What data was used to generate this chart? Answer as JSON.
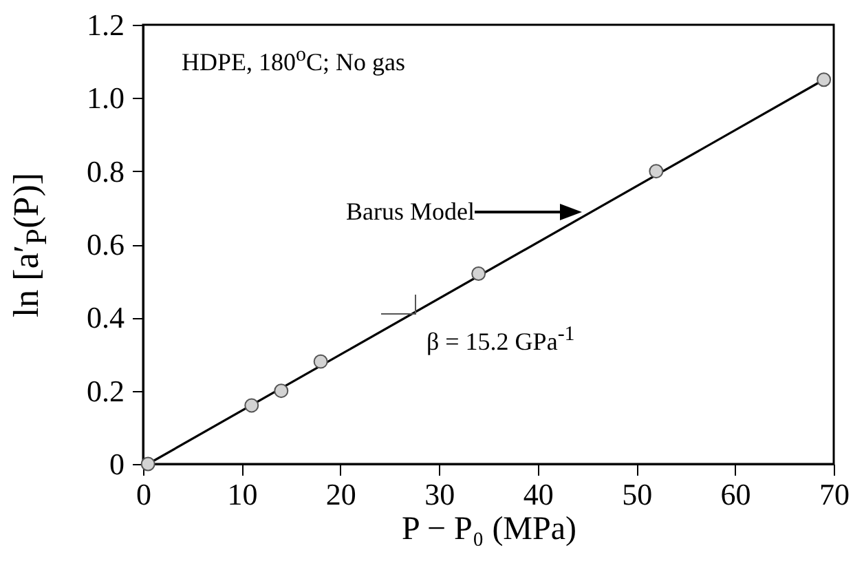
{
  "chart_data": {
    "type": "scatter",
    "xlabel": "P − P₀ (MPa)",
    "ylabel": "ln [a′$_{P}$(P)]",
    "xlim": [
      0,
      70
    ],
    "xticks": [
      0,
      10,
      20,
      30,
      40,
      50,
      60,
      70
    ],
    "ylim": [
      0,
      1.2
    ],
    "yticks": [
      0,
      0.2,
      0.4,
      0.6,
      0.8,
      {
        "value": 1,
        "label": "1.0"
      },
      1.2
    ],
    "annotations": [
      "HDPE, 180$^{o}$C; No gas",
      "Barus Model",
      "β = 15.2 GPa$^{-1}$"
    ],
    "series": [
      {
        "marker": "circle",
        "color": "#d3d3d3",
        "x": [
          0.5,
          11,
          14,
          18,
          34,
          52,
          69
        ],
        "values": [
          0,
          0.16,
          0.2,
          0.28,
          0.52,
          0.8,
          1.05
        ]
      },
      {
        "type": "line",
        "marker": "none",
        "color": "#000000",
        "x": [
          0.5,
          69
        ],
        "values": [
          0,
          1.05
        ]
      }
    ]
  }
}
